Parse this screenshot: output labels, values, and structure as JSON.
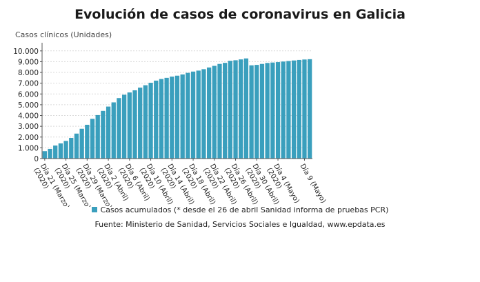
{
  "chart_data": {
    "type": "bar",
    "title": "Evolución de casos de coronavirus en Galicia",
    "ylabel": "Casos clínicos (Unidades)",
    "xlabel": "",
    "ylim": [
      0,
      10500
    ],
    "yticks": [
      "0",
      "1.000",
      "2.000",
      "3.000",
      "4.000",
      "5.000",
      "6.000",
      "7.000",
      "8.000",
      "9.000",
      "10.000"
    ],
    "ytick_values": [
      0,
      1000,
      2000,
      3000,
      4000,
      5000,
      6000,
      7000,
      8000,
      9000,
      10000
    ],
    "xtick_labels": [
      {
        "index": 0,
        "line1": "Día 21 (Marzo)",
        "line2": "(2020)"
      },
      {
        "index": 4,
        "line1": "Día 25 (Marzo)",
        "line2": "(2020)"
      },
      {
        "index": 8,
        "line1": "Día 29 (Marzo)",
        "line2": "(2020)"
      },
      {
        "index": 12,
        "line1": "Día 2 (Abril)",
        "line2": "(2020)"
      },
      {
        "index": 16,
        "line1": "Día 6 (Abril)",
        "line2": "(2020)"
      },
      {
        "index": 20,
        "line1": "Día 10 (Abril)",
        "line2": "(2020)"
      },
      {
        "index": 24,
        "line1": "Día 14 (Abril)",
        "line2": "(2020)"
      },
      {
        "index": 28,
        "line1": "Día 18 (Abril)",
        "line2": "(2020)"
      },
      {
        "index": 32,
        "line1": "Día 22 (Abril)",
        "line2": "(2020)"
      },
      {
        "index": 36,
        "line1": "Día 26 (Abril)",
        "line2": "(2020)"
      },
      {
        "index": 40,
        "line1": "Día 30 (Abril)",
        "line2": "(2020)"
      },
      {
        "index": 44,
        "line1": "Día 4 (Mayo)",
        "line2": "(2020)"
      },
      {
        "index": 49,
        "line1": "Día 9 (Mayo)",
        "line2": ""
      }
    ],
    "series": [
      {
        "name": "Casos acumulados (* desde el 26 de abril Sanidad informa de pruebas PCR)",
        "color": "#3a9fbd",
        "values": [
          690,
          900,
          1210,
          1410,
          1640,
          1920,
          2320,
          2770,
          3140,
          3690,
          4040,
          4430,
          4830,
          5220,
          5620,
          5930,
          6140,
          6340,
          6590,
          6810,
          7040,
          7240,
          7390,
          7500,
          7610,
          7700,
          7810,
          7960,
          8080,
          8170,
          8300,
          8460,
          8610,
          8790,
          8890,
          9080,
          9130,
          9210,
          9300,
          8660,
          8700,
          8790,
          8880,
          8920,
          8960,
          9010,
          9060,
          9110,
          9160,
          9200,
          9230
        ]
      }
    ],
    "grid": "horizontal",
    "legend_position": "bottom",
    "source": "Fuente: Ministerio de Sanidad, Servicios Sociales e Igualdad, www.epdata.es"
  }
}
